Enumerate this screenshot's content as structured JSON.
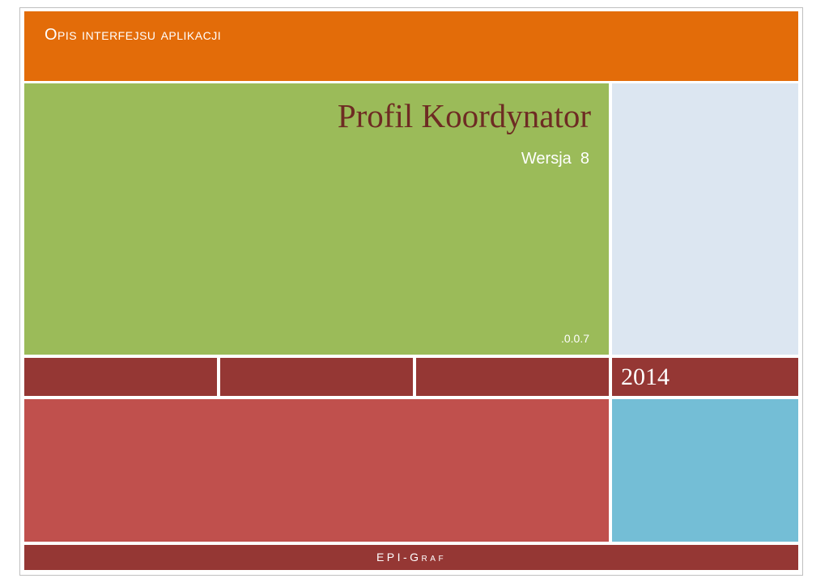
{
  "page": {
    "header": {
      "label": "Opis interfejsu aplikacji"
    },
    "title_block": {
      "title": "Profil Koordynator",
      "version": "Wersja  8",
      "version_suffix": ".0.0.7"
    },
    "band": {
      "year": "2014"
    },
    "footer": {
      "label": "EPI-Graf"
    },
    "colors": {
      "header_orange": "#E36C09",
      "title_green": "#9BBB59",
      "panel_light_blue": "#DCE6F1",
      "band_dark_red": "#953734",
      "tile_brick_red": "#C0504D",
      "tile_sky_blue": "#74BED6",
      "title_text": "#6E2B23",
      "border": "#BFBFBF"
    }
  }
}
